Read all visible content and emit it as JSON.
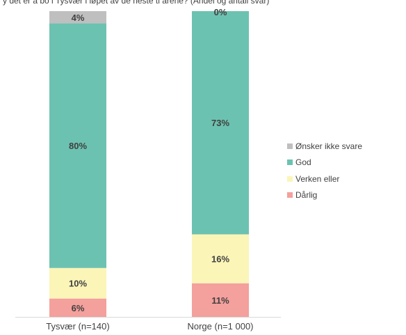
{
  "title": "y det er å bo i Tysvær i løpet av de neste ti årene? (Andel og antall svar)",
  "chart_data": {
    "type": "bar",
    "stacked": true,
    "categories": [
      "Tysvær (n=140)",
      "Norge (n=1 000)"
    ],
    "series": [
      {
        "name": "Dårlig",
        "values": [
          6,
          11
        ],
        "labels": [
          "6%",
          "11%"
        ],
        "color": "#f4a09c"
      },
      {
        "name": "Verken eller",
        "values": [
          10,
          16
        ],
        "labels": [
          "10%",
          "16%"
        ],
        "color": "#fbf5b8"
      },
      {
        "name": "God",
        "values": [
          80,
          73
        ],
        "labels": [
          "80%",
          "73%"
        ],
        "color": "#6cc2b0"
      },
      {
        "name": "Ønsker ikke svare",
        "values": [
          4,
          0
        ],
        "labels": [
          "4%",
          "0%"
        ],
        "color": "#bfbfbf"
      }
    ],
    "ylim": [
      0,
      100
    ],
    "legend_position": "right",
    "grid": false
  },
  "legend": [
    {
      "label": "Ønsker ikke svare",
      "color": "#bfbfbf"
    },
    {
      "label": "God",
      "color": "#6cc2b0"
    },
    {
      "label": "Verken eller",
      "color": "#fbf5b8"
    },
    {
      "label": "Dårlig",
      "color": "#f4a09c"
    }
  ]
}
